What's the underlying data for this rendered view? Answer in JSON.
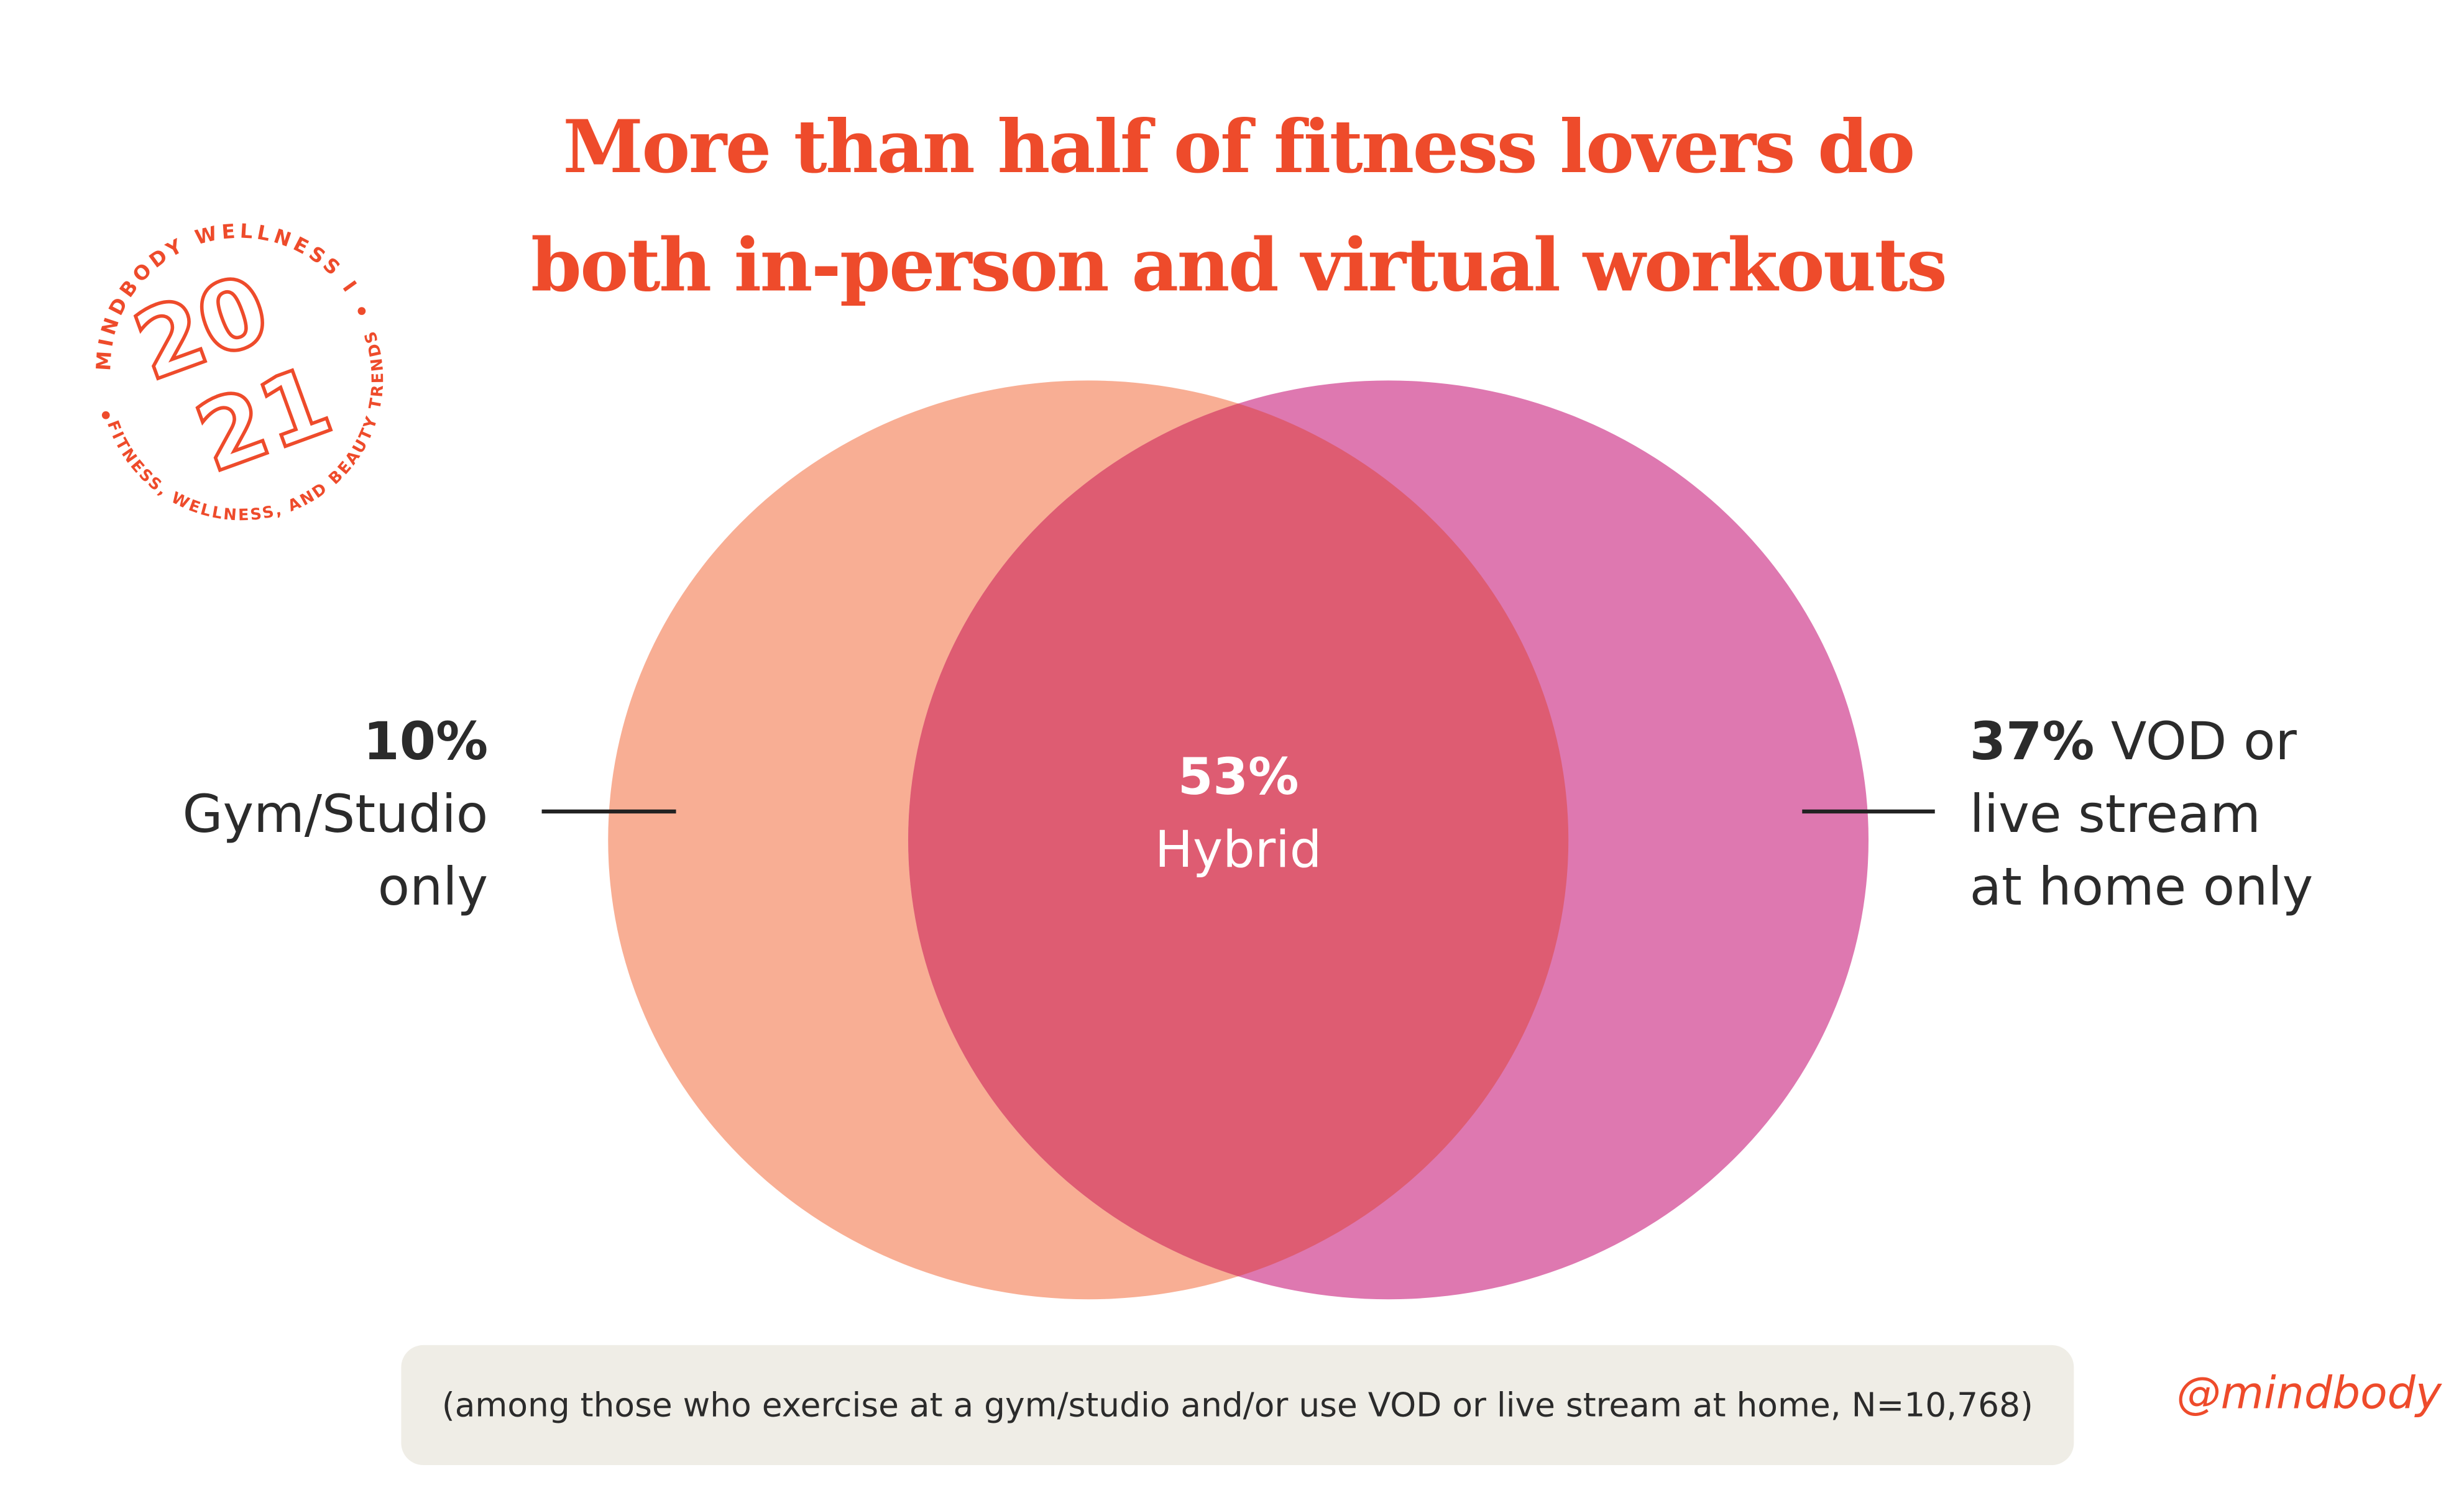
{
  "title": {
    "line1": "More than half of fitness lovers do",
    "line2": "both in-person and virtual workouts"
  },
  "badge": {
    "top_text": "MINDBODY WELLNESS INDEX",
    "bottom_text": "FITNESS, WELLNESS, AND BEAUTY TRENDS",
    "year_top": "20",
    "year_bottom": "21"
  },
  "venn": {
    "left": {
      "percent": "10%",
      "label_line1": "Gym/Studio",
      "label_line2": "only",
      "value": 10,
      "color": "#F8AE94"
    },
    "right": {
      "percent": "37%",
      "label_line1_rest": " VOD or",
      "label_line2": "live stream",
      "label_line3": "at home only",
      "value": 37,
      "color": "#DE78B0"
    },
    "overlap": {
      "percent": "53%",
      "label": "Hybrid",
      "value": 53,
      "color": "#DE5C72"
    }
  },
  "footer": {
    "note": "(among those who exercise at a gym/studio and/or use VOD or live stream at home, N=10,768)"
  },
  "brand": {
    "handle": "@mindbody",
    "accent": "#EE4B2B"
  }
}
